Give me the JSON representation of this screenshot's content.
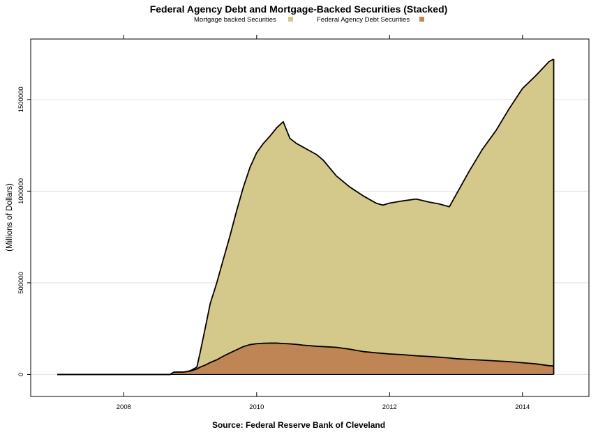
{
  "chart_data": {
    "type": "area",
    "stacked": true,
    "title": "Federal Agency Debt and Mortgage-Backed Securities (Stacked)",
    "caption": "Source: Federal Reserve Bank of Cleveland",
    "xlabel": "",
    "ylabel": "(Millions of Dollars)",
    "xlim": [
      2006.6,
      2015.0
    ],
    "ylim": [
      -120000,
      1830000
    ],
    "x_ticks": [
      2008,
      2010,
      2012,
      2014
    ],
    "x_tick_labels": [
      "2008",
      "2010",
      "2012",
      "2014"
    ],
    "y_ticks": [
      0,
      500000,
      1000000,
      1500000
    ],
    "y_tick_labels": [
      "0",
      "500000",
      "1000000",
      "1500000"
    ],
    "grid": "horizontal",
    "legend_position": "top-center",
    "x": [
      2007.0,
      2008.0,
      2008.7,
      2008.75,
      2008.8,
      2008.9,
      2009.0,
      2009.1,
      2009.15,
      2009.25,
      2009.3,
      2009.4,
      2009.5,
      2009.6,
      2009.7,
      2009.8,
      2009.9,
      2010.0,
      2010.1,
      2010.2,
      2010.3,
      2010.4,
      2010.5,
      2010.6,
      2010.7,
      2010.8,
      2010.9,
      2011.0,
      2011.2,
      2011.4,
      2011.6,
      2011.8,
      2011.9,
      2012.0,
      2012.2,
      2012.4,
      2012.6,
      2012.75,
      2012.9,
      2013.0,
      2013.2,
      2013.4,
      2013.6,
      2013.8,
      2014.0,
      2014.2,
      2014.4,
      2014.47
    ],
    "series": [
      {
        "name": "Federal Agency Debt Securities",
        "color": "#c08554",
        "values": [
          0,
          0,
          0,
          12000,
          13000,
          13000,
          18000,
          30000,
          40000,
          55000,
          65000,
          80000,
          100000,
          118000,
          135000,
          152000,
          163000,
          168000,
          170000,
          171000,
          171000,
          169000,
          167000,
          164000,
          160000,
          157000,
          154000,
          152000,
          148000,
          138000,
          125000,
          118000,
          115000,
          112000,
          108000,
          102000,
          98000,
          94000,
          90000,
          86000,
          82000,
          78000,
          74000,
          70000,
          64000,
          58000,
          48000,
          46000
        ]
      },
      {
        "name": "Mortgage backed Securities",
        "color": "#d4c98a",
        "values": [
          0,
          0,
          0,
          0,
          0,
          0,
          2000,
          10000,
          80000,
          240000,
          320000,
          420000,
          530000,
          640000,
          760000,
          870000,
          967000,
          1042000,
          1090000,
          1129000,
          1174000,
          1210000,
          1121000,
          1096000,
          1080000,
          1063000,
          1046000,
          1018000,
          935000,
          885000,
          850000,
          816000,
          809000,
          823000,
          839000,
          855000,
          842000,
          836000,
          825000,
          894000,
          1028000,
          1152000,
          1256000,
          1380000,
          1496000,
          1572000,
          1659000,
          1674000
        ]
      }
    ]
  }
}
